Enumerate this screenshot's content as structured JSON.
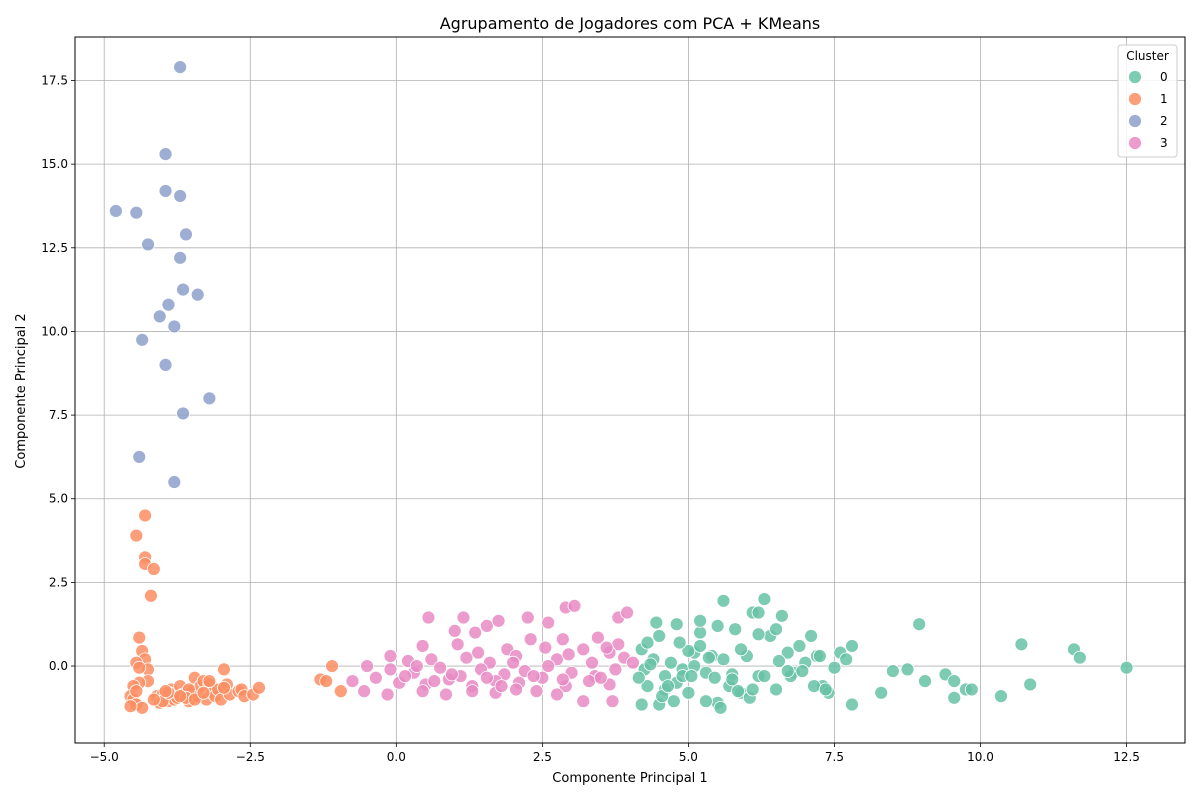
{
  "chart_data": {
    "type": "scatter",
    "title": "Agrupamento de Jogadores com PCA + KMeans",
    "xlabel": "Componente Principal 1",
    "ylabel": "Componente Principal 2",
    "xlim": [
      -5.5,
      13.5
    ],
    "ylim": [
      -2.3,
      18.8
    ],
    "xticks": [
      -5.0,
      -2.5,
      0.0,
      2.5,
      5.0,
      7.5,
      10.0,
      12.5
    ],
    "xtick_labels": [
      "−5.0",
      "−2.5",
      "0.0",
      "2.5",
      "5.0",
      "7.5",
      "10.0",
      "12.5"
    ],
    "yticks": [
      0.0,
      2.5,
      5.0,
      7.5,
      10.0,
      12.5,
      15.0,
      17.5
    ],
    "ytick_labels": [
      "0.0",
      "2.5",
      "5.0",
      "7.5",
      "10.0",
      "12.5",
      "15.0",
      "17.5"
    ],
    "grid": true,
    "legend": {
      "title": "Cluster",
      "placement": "top-right"
    },
    "series": [
      {
        "name": "0",
        "color": "#66c2a5",
        "points": [
          [
            4.2,
            0.5
          ],
          [
            4.3,
            0.7
          ],
          [
            4.4,
            0.2
          ],
          [
            4.5,
            0.9
          ],
          [
            4.6,
            -0.3
          ],
          [
            4.7,
            0.1
          ],
          [
            4.8,
            -0.5
          ],
          [
            4.9,
            -0.1
          ],
          [
            5.0,
            -0.8
          ],
          [
            5.1,
            0.4
          ],
          [
            5.2,
            1.0
          ],
          [
            5.3,
            -0.2
          ],
          [
            5.4,
            0.3
          ],
          [
            5.5,
            -1.1
          ],
          [
            5.6,
            0.2
          ],
          [
            5.7,
            -0.6
          ],
          [
            5.8,
            1.1
          ],
          [
            5.9,
            -0.8
          ],
          [
            6.0,
            0.3
          ],
          [
            6.1,
            1.6
          ],
          [
            6.2,
            -0.3
          ],
          [
            6.3,
            2.0
          ],
          [
            6.4,
            0.9
          ],
          [
            6.5,
            -0.7
          ],
          [
            6.6,
            1.5
          ],
          [
            6.7,
            0.4
          ],
          [
            6.8,
            -0.2
          ],
          [
            6.9,
            0.6
          ],
          [
            7.0,
            0.1
          ],
          [
            7.1,
            0.9
          ],
          [
            7.2,
            0.3
          ],
          [
            7.3,
            -0.6
          ],
          [
            7.4,
            -0.8
          ],
          [
            7.6,
            0.4
          ],
          [
            7.7,
            0.2
          ],
          [
            7.8,
            0.6
          ],
          [
            7.8,
            -1.15
          ],
          [
            8.3,
            -0.8
          ],
          [
            8.5,
            -0.15
          ],
          [
            8.75,
            -0.1
          ],
          [
            8.95,
            1.25
          ],
          [
            9.05,
            -0.45
          ],
          [
            9.4,
            -0.25
          ],
          [
            9.55,
            -0.45
          ],
          [
            9.55,
            -0.95
          ],
          [
            9.75,
            -0.7
          ],
          [
            9.85,
            -0.7
          ],
          [
            10.35,
            -0.9
          ],
          [
            10.7,
            0.65
          ],
          [
            10.85,
            -0.55
          ],
          [
            11.6,
            0.5
          ],
          [
            11.7,
            0.25
          ],
          [
            12.5,
            -0.05
          ],
          [
            4.2,
            -1.15
          ],
          [
            4.5,
            -1.15
          ],
          [
            4.75,
            -1.05
          ],
          [
            5.3,
            -1.05
          ],
          [
            5.55,
            -1.25
          ],
          [
            6.05,
            -0.95
          ],
          [
            4.45,
            1.3
          ],
          [
            4.8,
            1.25
          ],
          [
            5.2,
            1.35
          ],
          [
            5.5,
            1.2
          ],
          [
            5.6,
            1.95
          ],
          [
            6.2,
            1.6
          ],
          [
            4.3,
            -0.6
          ],
          [
            4.9,
            -0.3
          ],
          [
            5.75,
            -0.25
          ],
          [
            6.3,
            -0.3
          ],
          [
            6.75,
            -0.3
          ],
          [
            7.15,
            -0.6
          ],
          [
            4.6,
            -0.7
          ],
          [
            5.1,
            0.0
          ],
          [
            5.9,
            0.5
          ],
          [
            6.55,
            0.15
          ],
          [
            7.25,
            0.3
          ],
          [
            7.5,
            -0.05
          ],
          [
            4.25,
            -0.1
          ],
          [
            4.55,
            -0.9
          ],
          [
            5.35,
            0.25
          ],
          [
            6.1,
            -0.7
          ],
          [
            6.95,
            -0.15
          ],
          [
            5.05,
            -0.3
          ],
          [
            5.75,
            -0.4
          ],
          [
            6.5,
            1.1
          ],
          [
            4.15,
            -0.35
          ],
          [
            4.35,
            0.05
          ],
          [
            4.65,
            -0.6
          ],
          [
            5.0,
            0.45
          ],
          [
            5.2,
            0.6
          ],
          [
            5.85,
            -0.75
          ],
          [
            6.2,
            0.95
          ],
          [
            6.7,
            -0.15
          ],
          [
            7.35,
            -0.7
          ],
          [
            4.85,
            0.7
          ],
          [
            5.45,
            -0.35
          ]
        ]
      },
      {
        "name": "1",
        "color": "#fc8d62",
        "points": [
          [
            -4.3,
            4.5
          ],
          [
            -4.45,
            3.9
          ],
          [
            -4.3,
            3.25
          ],
          [
            -4.3,
            3.05
          ],
          [
            -4.15,
            2.9
          ],
          [
            -4.2,
            2.1
          ],
          [
            -4.4,
            0.85
          ],
          [
            -4.35,
            0.45
          ],
          [
            -4.3,
            0.2
          ],
          [
            -4.45,
            0.1
          ],
          [
            -4.25,
            -0.1
          ],
          [
            -4.4,
            -0.05
          ],
          [
            -4.25,
            -0.45
          ],
          [
            -4.4,
            -0.5
          ],
          [
            -4.5,
            -0.6
          ],
          [
            -4.55,
            -0.9
          ],
          [
            -4.5,
            -1.0
          ],
          [
            -4.45,
            -1.15
          ],
          [
            -4.35,
            -1.25
          ],
          [
            -4.55,
            -1.2
          ],
          [
            -4.1,
            -0.9
          ],
          [
            -4.05,
            -1.1
          ],
          [
            -4.0,
            -0.85
          ],
          [
            -3.9,
            -1.05
          ],
          [
            -3.85,
            -0.7
          ],
          [
            -3.8,
            -1.0
          ],
          [
            -3.7,
            -0.6
          ],
          [
            -3.65,
            -0.85
          ],
          [
            -3.55,
            -1.05
          ],
          [
            -3.5,
            -0.75
          ],
          [
            -3.45,
            -0.35
          ],
          [
            -3.4,
            -0.9
          ],
          [
            -3.35,
            -0.6
          ],
          [
            -3.3,
            -0.45
          ],
          [
            -3.25,
            -1.0
          ],
          [
            -3.2,
            -0.55
          ],
          [
            -3.15,
            -0.8
          ],
          [
            -3.1,
            -0.9
          ],
          [
            -3.05,
            -0.7
          ],
          [
            -3.0,
            -1.0
          ],
          [
            -2.95,
            -0.1
          ],
          [
            -2.9,
            -0.55
          ],
          [
            -2.85,
            -0.85
          ],
          [
            -2.7,
            -0.75
          ],
          [
            -2.65,
            -0.7
          ],
          [
            -2.6,
            -0.9
          ],
          [
            -2.45,
            -0.85
          ],
          [
            -2.35,
            -0.65
          ],
          [
            -1.3,
            -0.4
          ],
          [
            -1.2,
            -0.45
          ],
          [
            -1.1,
            0.0
          ],
          [
            -0.95,
            -0.75
          ],
          [
            -4.45,
            -0.75
          ],
          [
            -4.0,
            -1.05
          ],
          [
            -3.75,
            -0.95
          ],
          [
            -3.55,
            -0.7
          ],
          [
            -3.9,
            -0.8
          ],
          [
            -3.6,
            -0.95
          ],
          [
            -3.2,
            -0.45
          ],
          [
            -2.95,
            -0.65
          ],
          [
            -4.15,
            -1.0
          ],
          [
            -3.95,
            -0.75
          ],
          [
            -3.7,
            -0.9
          ],
          [
            -3.45,
            -1.0
          ],
          [
            -3.3,
            -0.8
          ]
        ]
      },
      {
        "name": "2",
        "color": "#8da0cb",
        "points": [
          [
            -3.7,
            17.9
          ],
          [
            -3.95,
            15.3
          ],
          [
            -3.95,
            14.2
          ],
          [
            -3.7,
            14.05
          ],
          [
            -4.8,
            13.6
          ],
          [
            -4.45,
            13.55
          ],
          [
            -3.6,
            12.9
          ],
          [
            -4.25,
            12.6
          ],
          [
            -3.7,
            12.2
          ],
          [
            -3.65,
            11.25
          ],
          [
            -3.4,
            11.1
          ],
          [
            -3.9,
            10.8
          ],
          [
            -4.05,
            10.45
          ],
          [
            -3.8,
            10.15
          ],
          [
            -4.35,
            9.75
          ],
          [
            -3.95,
            9.0
          ],
          [
            -3.2,
            8.0
          ],
          [
            -3.65,
            7.55
          ],
          [
            -4.4,
            6.25
          ],
          [
            -3.8,
            5.5
          ]
        ]
      },
      {
        "name": "3",
        "color": "#e78ac3",
        "points": [
          [
            0.55,
            1.45
          ],
          [
            1.15,
            1.45
          ],
          [
            1.55,
            1.2
          ],
          [
            1.75,
            1.35
          ],
          [
            2.25,
            1.45
          ],
          [
            2.6,
            1.3
          ],
          [
            2.9,
            1.75
          ],
          [
            3.05,
            1.8
          ],
          [
            3.8,
            1.45
          ],
          [
            3.95,
            1.6
          ],
          [
            1.0,
            1.05
          ],
          [
            1.35,
            1.0
          ],
          [
            2.3,
            0.8
          ],
          [
            2.85,
            0.8
          ],
          [
            3.45,
            0.85
          ],
          [
            3.8,
            0.65
          ],
          [
            0.45,
            0.6
          ],
          [
            1.05,
            0.65
          ],
          [
            1.9,
            0.5
          ],
          [
            2.55,
            0.55
          ],
          [
            3.2,
            0.5
          ],
          [
            3.65,
            0.4
          ],
          [
            -0.1,
            0.3
          ],
          [
            0.2,
            0.15
          ],
          [
            0.6,
            0.2
          ],
          [
            1.2,
            0.25
          ],
          [
            1.6,
            0.1
          ],
          [
            2.05,
            0.3
          ],
          [
            2.75,
            0.2
          ],
          [
            3.35,
            0.1
          ],
          [
            3.9,
            0.25
          ],
          [
            -0.5,
            0.0
          ],
          [
            -0.1,
            -0.1
          ],
          [
            0.3,
            -0.2
          ],
          [
            0.75,
            -0.05
          ],
          [
            1.1,
            -0.3
          ],
          [
            1.45,
            -0.1
          ],
          [
            1.85,
            -0.25
          ],
          [
            2.2,
            -0.15
          ],
          [
            2.6,
            0.0
          ],
          [
            3.0,
            -0.2
          ],
          [
            3.4,
            -0.3
          ],
          [
            3.75,
            -0.1
          ],
          [
            -0.75,
            -0.45
          ],
          [
            -0.35,
            -0.35
          ],
          [
            0.05,
            -0.5
          ],
          [
            0.5,
            -0.55
          ],
          [
            0.9,
            -0.4
          ],
          [
            1.3,
            -0.6
          ],
          [
            1.7,
            -0.45
          ],
          [
            2.1,
            -0.5
          ],
          [
            2.5,
            -0.35
          ],
          [
            2.9,
            -0.6
          ],
          [
            3.3,
            -0.45
          ],
          [
            3.65,
            -0.55
          ],
          [
            -0.55,
            -0.75
          ],
          [
            -0.15,
            -0.85
          ],
          [
            0.45,
            -0.75
          ],
          [
            0.85,
            -0.85
          ],
          [
            1.3,
            -0.75
          ],
          [
            1.7,
            -0.8
          ],
          [
            2.05,
            -0.7
          ],
          [
            2.4,
            -0.75
          ],
          [
            2.75,
            -0.85
          ],
          [
            3.2,
            -1.05
          ],
          [
            3.7,
            -1.05
          ],
          [
            0.95,
            -0.25
          ],
          [
            1.55,
            -0.35
          ],
          [
            2.35,
            -0.3
          ],
          [
            2.85,
            -0.4
          ],
          [
            3.5,
            -0.35
          ],
          [
            4.05,
            0.1
          ],
          [
            0.15,
            -0.3
          ],
          [
            0.65,
            -0.45
          ],
          [
            2.0,
            0.1
          ],
          [
            2.95,
            0.35
          ],
          [
            3.6,
            0.55
          ],
          [
            1.4,
            0.4
          ],
          [
            0.35,
            0.0
          ],
          [
            1.8,
            -0.6
          ]
        ]
      }
    ]
  }
}
